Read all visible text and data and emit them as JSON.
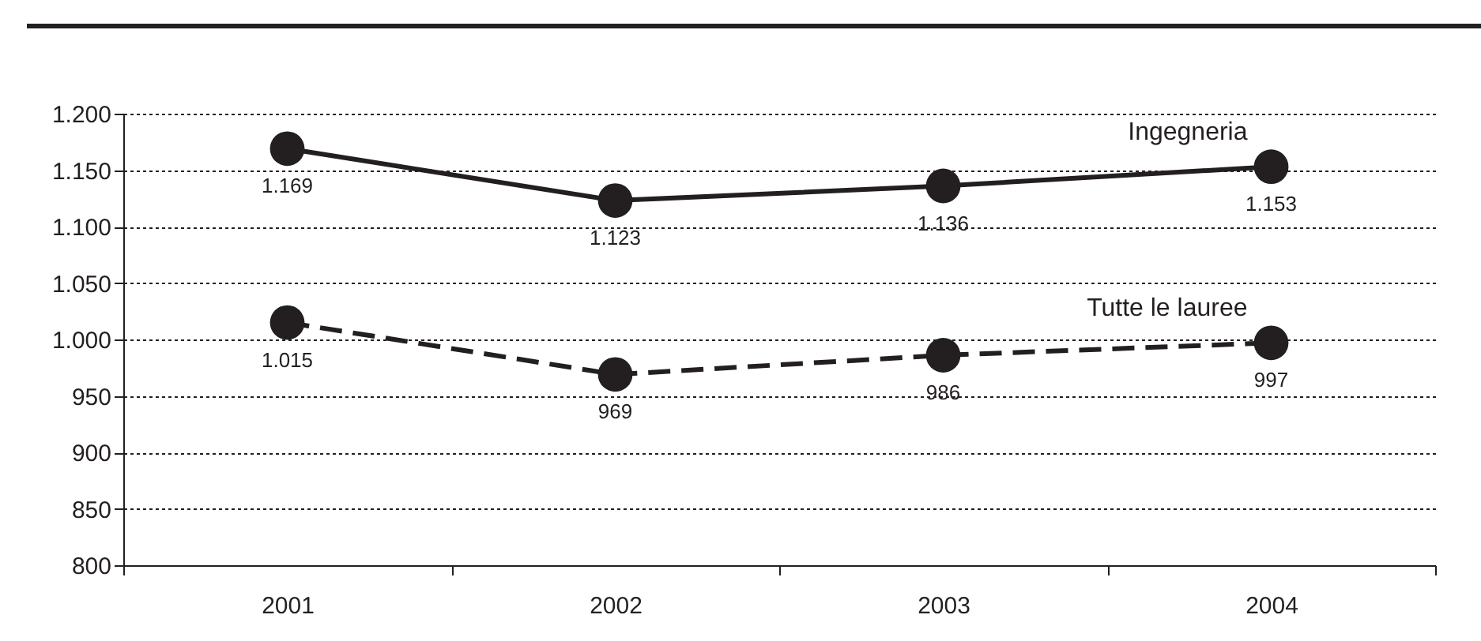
{
  "chart_data": {
    "type": "line",
    "categories": [
      "2001",
      "2002",
      "2003",
      "2004"
    ],
    "series": [
      {
        "name": "Ingegneria",
        "color": "#231f20",
        "line_style": "solid",
        "values": [
          1169,
          1123,
          1136,
          1153
        ],
        "value_labels": [
          "1.169",
          "1.123",
          "1.136",
          "1.153"
        ]
      },
      {
        "name": "Tutte le lauree",
        "color": "#231f20",
        "line_style": "dashed",
        "values": [
          1015,
          969,
          986,
          997
        ],
        "value_labels": [
          "1.015",
          "969",
          "986",
          "997"
        ]
      }
    ],
    "ylim": [
      800,
      1200
    ],
    "yticks": [
      {
        "value": 800,
        "label": "800"
      },
      {
        "value": 850,
        "label": "850"
      },
      {
        "value": 900,
        "label": "900"
      },
      {
        "value": 950,
        "label": "950"
      },
      {
        "value": 1000,
        "label": "1.000"
      },
      {
        "value": 1050,
        "label": "1.050"
      },
      {
        "value": 1100,
        "label": "1.100"
      },
      {
        "value": 1150,
        "label": "1.150"
      },
      {
        "value": 1200,
        "label": "1.200"
      }
    ],
    "grid": "y",
    "marker": "circle"
  }
}
